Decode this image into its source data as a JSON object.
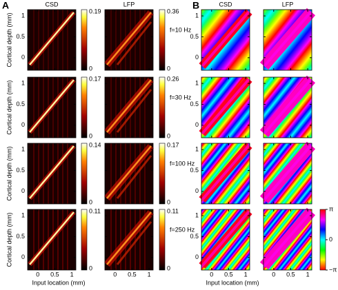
{
  "panels": [
    {
      "label": "A",
      "columns": [
        "CSD",
        "LFP"
      ]
    },
    {
      "label": "B",
      "columns": [
        "CSD",
        "LFP"
      ]
    }
  ],
  "rows": [
    {
      "frequency": "f=10 Hz",
      "csd_max": 0.19,
      "lfp_max": 0.36
    },
    {
      "frequency": "f=30 Hz",
      "csd_max": 0.17,
      "lfp_max": 0.26
    },
    {
      "frequency": "f=100 Hz",
      "csd_max": 0.14,
      "lfp_max": 0.17
    },
    {
      "frequency": "f=250 Hz",
      "csd_max": 0.11,
      "lfp_max": 0.11
    }
  ],
  "colorbar_min": 0,
  "y_axis": {
    "label": "Cortical depth (mm)",
    "ticks": [
      0,
      0.5,
      1
    ],
    "lim": [
      -0.3,
      1.15
    ]
  },
  "x_axis": {
    "label": "Input location (mm)",
    "ticks": [
      0,
      0.5,
      1
    ],
    "lim": [
      -0.3,
      1.12
    ]
  },
  "phase_colorbar": {
    "lim": [
      -3.14159,
      3.14159
    ],
    "ticks": [
      {
        "value": 3.14159,
        "label": "π"
      },
      {
        "value": 0,
        "label": "0"
      },
      {
        "value": -3.14159,
        "label": "−π"
      }
    ]
  }
}
